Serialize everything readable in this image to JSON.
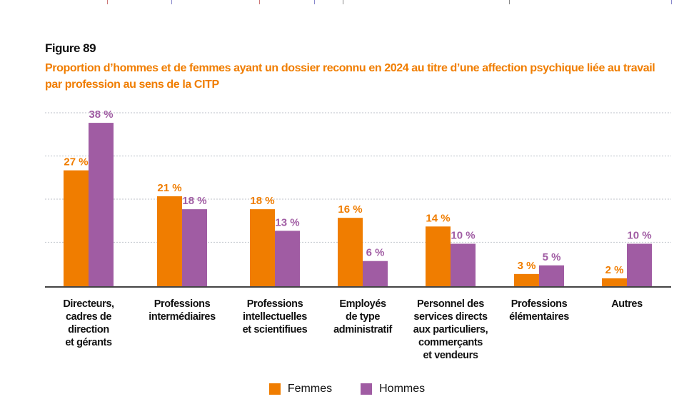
{
  "figure_label": "Figure 89",
  "chart_data": {
    "type": "bar",
    "title": "Proportion d’hommes et de femmes ayant un dossier reconnu en 2024 au titre d’une affection psychique liée au travail par profession au sens de la CITP",
    "categories": [
      "Directeurs, cadres de direction et gérants",
      "Professions intermédiaires",
      "Professions intellectuelles et scientifiues",
      "Employés de type administratif",
      "Personnel des services directs aux particuliers, commerçants et vendeurs",
      "Professions élémentaires",
      "Autres"
    ],
    "category_lines": [
      [
        "Directeurs,",
        "cadres de",
        "direction",
        "et gérants"
      ],
      [
        "Professions",
        "intermédiaires"
      ],
      [
        "Professions",
        "intellectuelles",
        "et scientifiues"
      ],
      [
        "Employés",
        "de type",
        "administratif"
      ],
      [
        "Personnel des",
        "services directs",
        "aux particuliers,",
        "commerçants",
        "et vendeurs"
      ],
      [
        "Professions",
        "élémentaires"
      ],
      [
        "Autres"
      ]
    ],
    "series": [
      {
        "name": "Femmes",
        "color": "#f07d00",
        "values": [
          27,
          21,
          18,
          16,
          14,
          3,
          2
        ],
        "labels": [
          "27 %",
          "21 %",
          "18 %",
          "16 %",
          "14 %",
          "3 %",
          "2 %"
        ]
      },
      {
        "name": "Hommes",
        "color": "#a05ca3",
        "values": [
          38,
          18,
          13,
          6,
          10,
          5,
          10
        ],
        "labels": [
          "38 %",
          "18 %",
          "13 %",
          "6 %",
          "10 %",
          "5 %",
          "10 %"
        ]
      }
    ],
    "ylim": [
      0,
      40
    ],
    "grid": true,
    "legend": "bottom",
    "xlabel": "",
    "ylabel": ""
  }
}
